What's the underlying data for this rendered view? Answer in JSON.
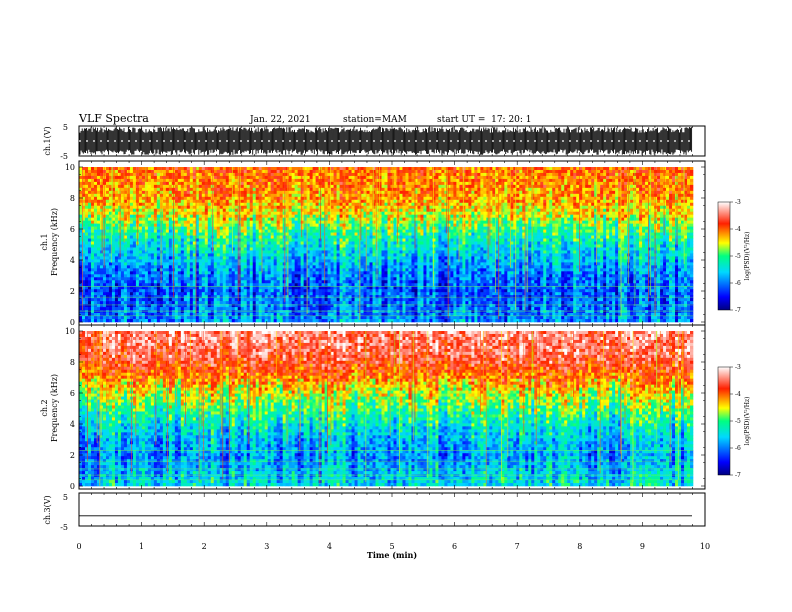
{
  "header": {
    "title": "VLF Spectra",
    "date": "Jan. 22, 2021",
    "station": "station=MAM",
    "start": "start UT =  17: 20: 1"
  },
  "chart_data": [
    {
      "type": "line",
      "panel": "waveform-ch1",
      "ylabel": "ch.1(V)",
      "ylim": [
        -5,
        5
      ],
      "yticks": [
        "5",
        "-5"
      ],
      "xlim": [
        0,
        10
      ],
      "color": "#000000",
      "description_values": {
        "min": -5,
        "max": 5
      }
    },
    {
      "type": "heatmap",
      "panel": "spectrogram-ch1",
      "ylabel_line1": "ch.1",
      "ylabel_line2": "Frequency (kHz)",
      "ylim": [
        0,
        10
      ],
      "yticks": [
        "0",
        "2",
        "4",
        "6",
        "8",
        "10"
      ],
      "xlim": [
        0,
        9.8
      ],
      "colorbar": {
        "label": "log(PSD)(V²/Hz)",
        "ticks": [
          "-3",
          "-4",
          "-5",
          "-6",
          "-7"
        ],
        "range": [
          -7,
          -3
        ]
      },
      "approx_log_psd_by_freq_khz": [
        {
          "f": 0.5,
          "v": -6.0
        },
        {
          "f": 2,
          "v": -6.2
        },
        {
          "f": 3,
          "v": -6.0
        },
        {
          "f": 4,
          "v": -5.7
        },
        {
          "f": 5,
          "v": -5.4
        },
        {
          "f": 6,
          "v": -5.0
        },
        {
          "f": 7,
          "v": -4.5
        },
        {
          "f": 8,
          "v": -4.2
        },
        {
          "f": 9,
          "v": -4.1
        },
        {
          "f": 10,
          "v": -4.0
        }
      ]
    },
    {
      "type": "heatmap",
      "panel": "spectrogram-ch2",
      "ylabel_line1": "ch.2",
      "ylabel_line2": "Frequency (kHz)",
      "ylim": [
        0,
        10
      ],
      "yticks": [
        "0",
        "2",
        "4",
        "6",
        "8",
        "10"
      ],
      "xlim": [
        0,
        9.8
      ],
      "colorbar": {
        "label": "log(PSD)(V²/Hz)",
        "ticks": [
          "-3",
          "-4",
          "-5",
          "-6",
          "-7"
        ],
        "range": [
          -7,
          -3
        ]
      },
      "approx_log_psd_by_freq_khz": [
        {
          "f": 0.5,
          "v": -5.6
        },
        {
          "f": 2,
          "v": -5.9
        },
        {
          "f": 3,
          "v": -5.7
        },
        {
          "f": 4,
          "v": -5.4
        },
        {
          "f": 5,
          "v": -5.0
        },
        {
          "f": 6,
          "v": -4.6
        },
        {
          "f": 7,
          "v": -4.1
        },
        {
          "f": 8,
          "v": -3.7
        },
        {
          "f": 9,
          "v": -3.5
        },
        {
          "f": 10,
          "v": -3.4
        }
      ]
    },
    {
      "type": "line",
      "panel": "waveform-ch3",
      "ylabel": "ch.3(V)",
      "ylim": [
        -5,
        5
      ],
      "yticks": [
        "5",
        "-5"
      ],
      "xlim": [
        0,
        10
      ],
      "xticks": [
        "0",
        "1",
        "2",
        "3",
        "4",
        "5",
        "6",
        "7",
        "8",
        "9",
        "10"
      ],
      "xlabel": "Time (min)",
      "color": "#000000",
      "description_values": {
        "constant": -1.5
      }
    }
  ]
}
